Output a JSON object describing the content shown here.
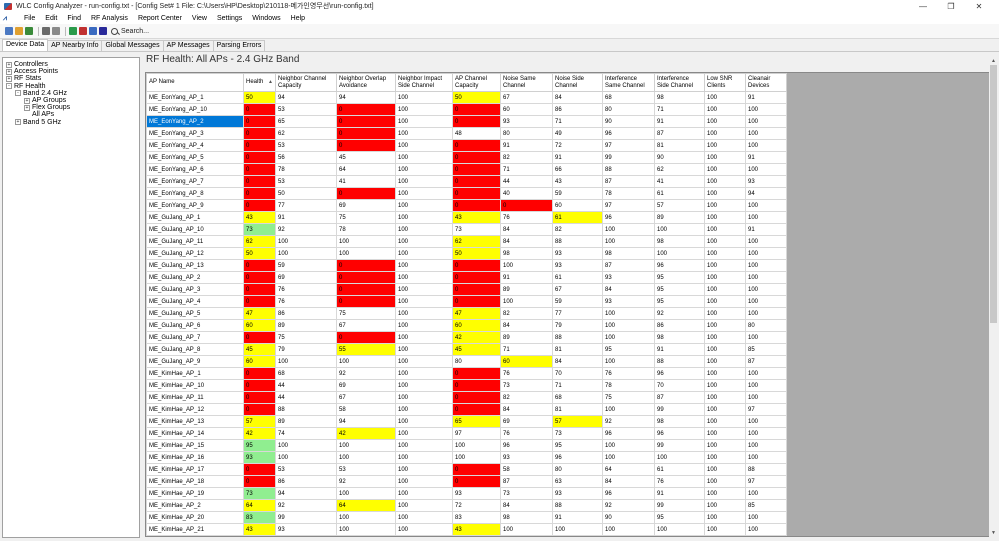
{
  "window": {
    "title": "WLC Config Analyzer - run-config.txt - [Config Set# 1 File: C:\\Users\\HP\\Desktop\\210118-메가인영무선\\run-config.txt]",
    "minimize": "—",
    "maximize": "❐",
    "close": "✕"
  },
  "menu": [
    "File",
    "Edit",
    "Find",
    "RF Analysis",
    "Report Center",
    "View",
    "Settings",
    "Windows",
    "Help"
  ],
  "toolbar": {
    "search_label": "Search...",
    "colors": [
      "#4a78c2",
      "#e0a030",
      "#3a8a3a",
      "#6a6a6a",
      "#8a8a8a",
      "#2a9a4a",
      "#c03030",
      "#3a6ac0",
      "#2a2a9a"
    ]
  },
  "tabs": [
    "Device Data",
    "AP Nearby Info",
    "Global Messages",
    "AP Messages",
    "Parsing Errors"
  ],
  "tree": [
    {
      "label": "Controllers",
      "indent": 0,
      "exp": "+"
    },
    {
      "label": "Access Points",
      "indent": 0,
      "exp": "+"
    },
    {
      "label": "RF Stats",
      "indent": 0,
      "exp": "+"
    },
    {
      "label": "RF Health",
      "indent": 0,
      "exp": "-"
    },
    {
      "label": "Band 2.4 GHz",
      "indent": 1,
      "exp": "-"
    },
    {
      "label": "AP Groups",
      "indent": 2,
      "exp": "+"
    },
    {
      "label": "Flex Groups",
      "indent": 2,
      "exp": "+"
    },
    {
      "label": "All APs",
      "indent": 2,
      "exp": ""
    },
    {
      "label": "Band 5 GHz",
      "indent": 1,
      "exp": "+"
    }
  ],
  "main": {
    "title": "RF Health: All APs - 2.4 GHz Band"
  },
  "grid": {
    "sort_icon": "▲",
    "columns": [
      "AP Name",
      "Health",
      "Neighbor Channel Capacity",
      "Neighbor Overlap Avoidance",
      "Neighbor Impact Side Channel",
      "AP Channel Capacity",
      "Noise Same Channel",
      "Noise Side Channel",
      "Interference Same Channel",
      "Interference Side Channel",
      "Low SNR Clients",
      "Cleanair Devices"
    ],
    "rows": [
      {
        "name": "ME_EonYang_AP_1",
        "v": [
          "50",
          "94",
          "94",
          "100",
          "50",
          "67",
          "84",
          "68",
          "98",
          "100",
          "91"
        ],
        "c": [
          "y",
          "",
          "",
          "",
          "y",
          "",
          "",
          "",
          "",
          "",
          ""
        ]
      },
      {
        "name": "ME_EonYang_AP_10",
        "v": [
          "0",
          "53",
          "0",
          "100",
          "0",
          "60",
          "86",
          "80",
          "71",
          "100",
          "100"
        ],
        "c": [
          "r",
          "",
          "r",
          "",
          "r",
          "",
          "",
          "",
          "",
          "",
          ""
        ]
      },
      {
        "name": "ME_EonYang_AP_2",
        "v": [
          "0",
          "65",
          "0",
          "100",
          "0",
          "93",
          "71",
          "90",
          "91",
          "100",
          "100"
        ],
        "c": [
          "r",
          "",
          "r",
          "",
          "r",
          "",
          "",
          "",
          "",
          "",
          ""
        ],
        "selected": true
      },
      {
        "name": "ME_EonYang_AP_3",
        "v": [
          "0",
          "62",
          "0",
          "100",
          "48",
          "80",
          "49",
          "96",
          "87",
          "100",
          "100"
        ],
        "c": [
          "r",
          "",
          "r",
          "",
          "",
          "",
          "",
          "",
          "",
          "",
          ""
        ]
      },
      {
        "name": "ME_EonYang_AP_4",
        "v": [
          "0",
          "53",
          "0",
          "100",
          "0",
          "91",
          "72",
          "97",
          "81",
          "100",
          "100"
        ],
        "c": [
          "r",
          "",
          "r",
          "",
          "r",
          "",
          "",
          "",
          "",
          "",
          ""
        ]
      },
      {
        "name": "ME_EonYang_AP_5",
        "v": [
          "0",
          "56",
          "45",
          "100",
          "0",
          "82",
          "91",
          "99",
          "90",
          "100",
          "91"
        ],
        "c": [
          "r",
          "",
          "",
          "",
          "r",
          "",
          "",
          "",
          "",
          "",
          ""
        ]
      },
      {
        "name": "ME_EonYang_AP_6",
        "v": [
          "0",
          "78",
          "64",
          "100",
          "0",
          "71",
          "66",
          "88",
          "62",
          "100",
          "100"
        ],
        "c": [
          "r",
          "",
          "",
          "",
          "r",
          "",
          "",
          "",
          "",
          "",
          ""
        ]
      },
      {
        "name": "ME_EonYang_AP_7",
        "v": [
          "0",
          "53",
          "41",
          "100",
          "0",
          "44",
          "43",
          "87",
          "41",
          "100",
          "93"
        ],
        "c": [
          "r",
          "",
          "",
          "",
          "r",
          "",
          "",
          "",
          "",
          "",
          ""
        ]
      },
      {
        "name": "ME_EonYang_AP_8",
        "v": [
          "0",
          "50",
          "0",
          "100",
          "0",
          "40",
          "59",
          "78",
          "61",
          "100",
          "94"
        ],
        "c": [
          "r",
          "",
          "r",
          "",
          "r",
          "",
          "",
          "",
          "",
          "",
          ""
        ]
      },
      {
        "name": "ME_EonYang_AP_9",
        "v": [
          "0",
          "77",
          "69",
          "100",
          "0",
          "0",
          "60",
          "97",
          "57",
          "100",
          "100"
        ],
        "c": [
          "r",
          "",
          "",
          "",
          "r",
          "r",
          "",
          "",
          "",
          "",
          ""
        ]
      },
      {
        "name": "ME_GuJang_AP_1",
        "v": [
          "43",
          "91",
          "75",
          "100",
          "43",
          "76",
          "61",
          "96",
          "89",
          "100",
          "100"
        ],
        "c": [
          "y",
          "",
          "",
          "",
          "y",
          "",
          "y",
          "",
          "",
          "",
          ""
        ]
      },
      {
        "name": "ME_GuJang_AP_10",
        "v": [
          "73",
          "92",
          "78",
          "100",
          "73",
          "84",
          "82",
          "100",
          "100",
          "100",
          "91"
        ],
        "c": [
          "g",
          "",
          "",
          "",
          "",
          "",
          "",
          "",
          "",
          "",
          ""
        ]
      },
      {
        "name": "ME_GuJang_AP_11",
        "v": [
          "62",
          "100",
          "100",
          "100",
          "62",
          "84",
          "88",
          "100",
          "98",
          "100",
          "100"
        ],
        "c": [
          "y",
          "",
          "",
          "",
          "y",
          "",
          "",
          "",
          "",
          "",
          ""
        ]
      },
      {
        "name": "ME_GuJang_AP_12",
        "v": [
          "50",
          "100",
          "100",
          "100",
          "50",
          "98",
          "93",
          "98",
          "100",
          "100",
          "100"
        ],
        "c": [
          "y",
          "",
          "",
          "",
          "y",
          "",
          "",
          "",
          "",
          "",
          ""
        ]
      },
      {
        "name": "ME_GuJang_AP_13",
        "v": [
          "0",
          "59",
          "0",
          "100",
          "0",
          "100",
          "93",
          "87",
          "96",
          "100",
          "100"
        ],
        "c": [
          "r",
          "",
          "r",
          "",
          "r",
          "",
          "",
          "",
          "",
          "",
          ""
        ]
      },
      {
        "name": "ME_GuJang_AP_2",
        "v": [
          "0",
          "69",
          "0",
          "100",
          "0",
          "91",
          "61",
          "93",
          "95",
          "100",
          "100"
        ],
        "c": [
          "r",
          "",
          "r",
          "",
          "r",
          "",
          "",
          "",
          "",
          "",
          ""
        ]
      },
      {
        "name": "ME_GuJang_AP_3",
        "v": [
          "0",
          "76",
          "0",
          "100",
          "0",
          "89",
          "67",
          "84",
          "95",
          "100",
          "100"
        ],
        "c": [
          "r",
          "",
          "r",
          "",
          "r",
          "",
          "",
          "",
          "",
          "",
          ""
        ]
      },
      {
        "name": "ME_GuJang_AP_4",
        "v": [
          "0",
          "76",
          "0",
          "100",
          "0",
          "100",
          "59",
          "93",
          "95",
          "100",
          "100"
        ],
        "c": [
          "r",
          "",
          "r",
          "",
          "r",
          "",
          "",
          "",
          "",
          "",
          ""
        ]
      },
      {
        "name": "ME_GuJang_AP_5",
        "v": [
          "47",
          "86",
          "75",
          "100",
          "47",
          "82",
          "77",
          "100",
          "92",
          "100",
          "100"
        ],
        "c": [
          "y",
          "",
          "",
          "",
          "y",
          "",
          "",
          "",
          "",
          "",
          ""
        ]
      },
      {
        "name": "ME_GuJang_AP_6",
        "v": [
          "60",
          "89",
          "67",
          "100",
          "60",
          "84",
          "79",
          "100",
          "86",
          "100",
          "80"
        ],
        "c": [
          "y",
          "",
          "",
          "",
          "y",
          "",
          "",
          "",
          "",
          "",
          ""
        ]
      },
      {
        "name": "ME_GuJang_AP_7",
        "v": [
          "0",
          "75",
          "0",
          "100",
          "42",
          "89",
          "88",
          "100",
          "98",
          "100",
          "100"
        ],
        "c": [
          "r",
          "",
          "r",
          "",
          "y",
          "",
          "",
          "",
          "",
          "",
          ""
        ]
      },
      {
        "name": "ME_GuJang_AP_8",
        "v": [
          "45",
          "79",
          "55",
          "100",
          "45",
          "71",
          "81",
          "95",
          "91",
          "100",
          "85"
        ],
        "c": [
          "y",
          "",
          "y",
          "",
          "y",
          "",
          "",
          "",
          "",
          "",
          ""
        ]
      },
      {
        "name": "ME_GuJang_AP_9",
        "v": [
          "60",
          "100",
          "100",
          "100",
          "80",
          "60",
          "84",
          "100",
          "88",
          "100",
          "87"
        ],
        "c": [
          "y",
          "",
          "",
          "",
          "",
          "y",
          "",
          "",
          "",
          "",
          ""
        ]
      },
      {
        "name": "ME_KimHae_AP_1",
        "v": [
          "0",
          "68",
          "92",
          "100",
          "0",
          "76",
          "70",
          "76",
          "96",
          "100",
          "100"
        ],
        "c": [
          "r",
          "",
          "",
          "",
          "r",
          "",
          "",
          "",
          "",
          "",
          ""
        ]
      },
      {
        "name": "ME_KimHae_AP_10",
        "v": [
          "0",
          "44",
          "69",
          "100",
          "0",
          "73",
          "71",
          "78",
          "70",
          "100",
          "100"
        ],
        "c": [
          "r",
          "",
          "",
          "",
          "r",
          "",
          "",
          "",
          "",
          "",
          ""
        ]
      },
      {
        "name": "ME_KimHae_AP_11",
        "v": [
          "0",
          "44",
          "67",
          "100",
          "0",
          "82",
          "68",
          "75",
          "87",
          "100",
          "100"
        ],
        "c": [
          "r",
          "",
          "",
          "",
          "r",
          "",
          "",
          "",
          "",
          "",
          ""
        ]
      },
      {
        "name": "ME_KimHae_AP_12",
        "v": [
          "0",
          "88",
          "58",
          "100",
          "0",
          "84",
          "81",
          "100",
          "99",
          "100",
          "97"
        ],
        "c": [
          "r",
          "",
          "",
          "",
          "r",
          "",
          "",
          "",
          "",
          "",
          ""
        ]
      },
      {
        "name": "ME_KimHae_AP_13",
        "v": [
          "57",
          "89",
          "94",
          "100",
          "65",
          "69",
          "57",
          "92",
          "98",
          "100",
          "100"
        ],
        "c": [
          "y",
          "",
          "",
          "",
          "y",
          "",
          "y",
          "",
          "",
          "",
          ""
        ]
      },
      {
        "name": "ME_KimHae_AP_14",
        "v": [
          "42",
          "74",
          "42",
          "100",
          "97",
          "76",
          "73",
          "96",
          "96",
          "100",
          "100"
        ],
        "c": [
          "y",
          "",
          "y",
          "",
          "",
          "",
          "",
          "",
          "",
          "",
          ""
        ]
      },
      {
        "name": "ME_KimHae_AP_15",
        "v": [
          "95",
          "100",
          "100",
          "100",
          "100",
          "96",
          "95",
          "100",
          "99",
          "100",
          "100"
        ],
        "c": [
          "g",
          "",
          "",
          "",
          "",
          "",
          "",
          "",
          "",
          "",
          ""
        ]
      },
      {
        "name": "ME_KimHae_AP_16",
        "v": [
          "93",
          "100",
          "100",
          "100",
          "100",
          "93",
          "96",
          "100",
          "100",
          "100",
          "100"
        ],
        "c": [
          "g",
          "",
          "",
          "",
          "",
          "",
          "",
          "",
          "",
          "",
          ""
        ]
      },
      {
        "name": "ME_KimHae_AP_17",
        "v": [
          "0",
          "53",
          "53",
          "100",
          "0",
          "58",
          "80",
          "64",
          "61",
          "100",
          "88"
        ],
        "c": [
          "r",
          "",
          "",
          "",
          "r",
          "",
          "",
          "",
          "",
          "",
          ""
        ]
      },
      {
        "name": "ME_KimHae_AP_18",
        "v": [
          "0",
          "86",
          "92",
          "100",
          "0",
          "87",
          "63",
          "84",
          "76",
          "100",
          "97"
        ],
        "c": [
          "r",
          "",
          "",
          "",
          "r",
          "",
          "",
          "",
          "",
          "",
          ""
        ]
      },
      {
        "name": "ME_KimHae_AP_19",
        "v": [
          "73",
          "94",
          "100",
          "100",
          "93",
          "73",
          "93",
          "96",
          "91",
          "100",
          "100"
        ],
        "c": [
          "g",
          "",
          "",
          "",
          "",
          "",
          "",
          "",
          "",
          "",
          ""
        ]
      },
      {
        "name": "ME_KimHae_AP_2",
        "v": [
          "64",
          "92",
          "64",
          "100",
          "72",
          "84",
          "88",
          "92",
          "99",
          "100",
          "85"
        ],
        "c": [
          "y",
          "",
          "y",
          "",
          "",
          "",
          "",
          "",
          "",
          "",
          ""
        ]
      },
      {
        "name": "ME_KimHae_AP_20",
        "v": [
          "83",
          "99",
          "100",
          "100",
          "83",
          "98",
          "91",
          "90",
          "95",
          "100",
          "100"
        ],
        "c": [
          "g",
          "",
          "",
          "",
          "",
          "",
          "",
          "",
          "",
          "",
          ""
        ]
      },
      {
        "name": "ME_KimHae_AP_21",
        "v": [
          "43",
          "93",
          "100",
          "100",
          "43",
          "100",
          "100",
          "100",
          "100",
          "100",
          "100"
        ],
        "c": [
          "y",
          "",
          "",
          "",
          "y",
          "",
          "",
          "",
          "",
          "",
          ""
        ]
      }
    ]
  }
}
